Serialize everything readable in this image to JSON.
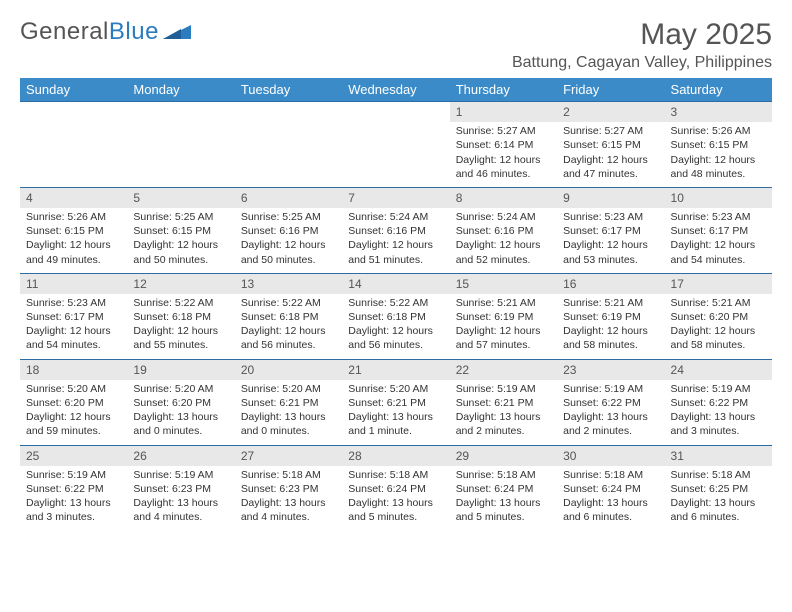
{
  "logo": {
    "text1": "General",
    "text2": "Blue"
  },
  "title": "May 2025",
  "location": "Battung, Cagayan Valley, Philippines",
  "colors": {
    "header_bg": "#3b8bc9",
    "header_text": "#ffffff",
    "daynum_bg": "#e8e8e8",
    "border_top": "#2b6ca3",
    "body_text": "#333333",
    "title_text": "#555555"
  },
  "day_headers": [
    "Sunday",
    "Monday",
    "Tuesday",
    "Wednesday",
    "Thursday",
    "Friday",
    "Saturday"
  ],
  "weeks": [
    {
      "nums": [
        "",
        "",
        "",
        "",
        "1",
        "2",
        "3"
      ],
      "details": [
        "",
        "",
        "",
        "",
        "Sunrise: 5:27 AM\nSunset: 6:14 PM\nDaylight: 12 hours and 46 minutes.",
        "Sunrise: 5:27 AM\nSunset: 6:15 PM\nDaylight: 12 hours and 47 minutes.",
        "Sunrise: 5:26 AM\nSunset: 6:15 PM\nDaylight: 12 hours and 48 minutes."
      ]
    },
    {
      "nums": [
        "4",
        "5",
        "6",
        "7",
        "8",
        "9",
        "10"
      ],
      "details": [
        "Sunrise: 5:26 AM\nSunset: 6:15 PM\nDaylight: 12 hours and 49 minutes.",
        "Sunrise: 5:25 AM\nSunset: 6:15 PM\nDaylight: 12 hours and 50 minutes.",
        "Sunrise: 5:25 AM\nSunset: 6:16 PM\nDaylight: 12 hours and 50 minutes.",
        "Sunrise: 5:24 AM\nSunset: 6:16 PM\nDaylight: 12 hours and 51 minutes.",
        "Sunrise: 5:24 AM\nSunset: 6:16 PM\nDaylight: 12 hours and 52 minutes.",
        "Sunrise: 5:23 AM\nSunset: 6:17 PM\nDaylight: 12 hours and 53 minutes.",
        "Sunrise: 5:23 AM\nSunset: 6:17 PM\nDaylight: 12 hours and 54 minutes."
      ]
    },
    {
      "nums": [
        "11",
        "12",
        "13",
        "14",
        "15",
        "16",
        "17"
      ],
      "details": [
        "Sunrise: 5:23 AM\nSunset: 6:17 PM\nDaylight: 12 hours and 54 minutes.",
        "Sunrise: 5:22 AM\nSunset: 6:18 PM\nDaylight: 12 hours and 55 minutes.",
        "Sunrise: 5:22 AM\nSunset: 6:18 PM\nDaylight: 12 hours and 56 minutes.",
        "Sunrise: 5:22 AM\nSunset: 6:18 PM\nDaylight: 12 hours and 56 minutes.",
        "Sunrise: 5:21 AM\nSunset: 6:19 PM\nDaylight: 12 hours and 57 minutes.",
        "Sunrise: 5:21 AM\nSunset: 6:19 PM\nDaylight: 12 hours and 58 minutes.",
        "Sunrise: 5:21 AM\nSunset: 6:20 PM\nDaylight: 12 hours and 58 minutes."
      ]
    },
    {
      "nums": [
        "18",
        "19",
        "20",
        "21",
        "22",
        "23",
        "24"
      ],
      "details": [
        "Sunrise: 5:20 AM\nSunset: 6:20 PM\nDaylight: 12 hours and 59 minutes.",
        "Sunrise: 5:20 AM\nSunset: 6:20 PM\nDaylight: 13 hours and 0 minutes.",
        "Sunrise: 5:20 AM\nSunset: 6:21 PM\nDaylight: 13 hours and 0 minutes.",
        "Sunrise: 5:20 AM\nSunset: 6:21 PM\nDaylight: 13 hours and 1 minute.",
        "Sunrise: 5:19 AM\nSunset: 6:21 PM\nDaylight: 13 hours and 2 minutes.",
        "Sunrise: 5:19 AM\nSunset: 6:22 PM\nDaylight: 13 hours and 2 minutes.",
        "Sunrise: 5:19 AM\nSunset: 6:22 PM\nDaylight: 13 hours and 3 minutes."
      ]
    },
    {
      "nums": [
        "25",
        "26",
        "27",
        "28",
        "29",
        "30",
        "31"
      ],
      "details": [
        "Sunrise: 5:19 AM\nSunset: 6:22 PM\nDaylight: 13 hours and 3 minutes.",
        "Sunrise: 5:19 AM\nSunset: 6:23 PM\nDaylight: 13 hours and 4 minutes.",
        "Sunrise: 5:18 AM\nSunset: 6:23 PM\nDaylight: 13 hours and 4 minutes.",
        "Sunrise: 5:18 AM\nSunset: 6:24 PM\nDaylight: 13 hours and 5 minutes.",
        "Sunrise: 5:18 AM\nSunset: 6:24 PM\nDaylight: 13 hours and 5 minutes.",
        "Sunrise: 5:18 AM\nSunset: 6:24 PM\nDaylight: 13 hours and 6 minutes.",
        "Sunrise: 5:18 AM\nSunset: 6:25 PM\nDaylight: 13 hours and 6 minutes."
      ]
    }
  ]
}
